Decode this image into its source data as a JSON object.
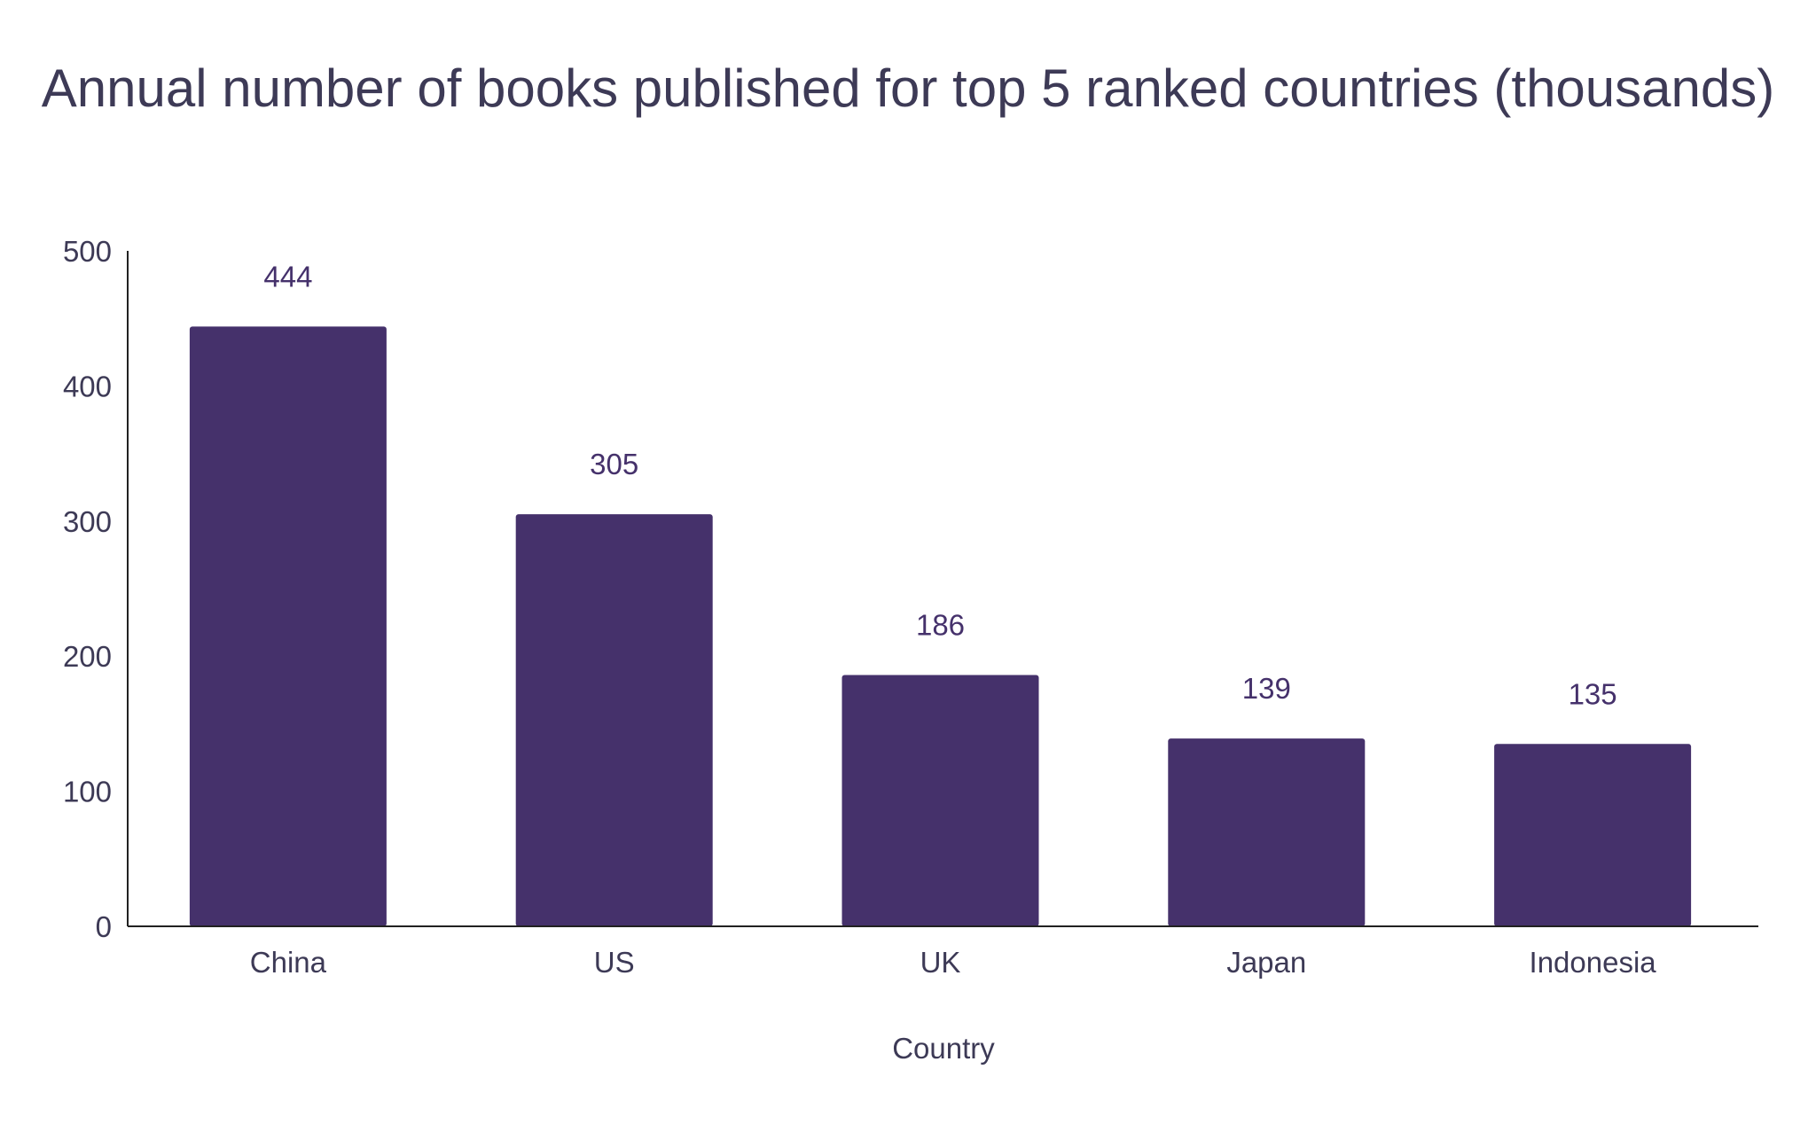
{
  "chart_data": {
    "type": "bar",
    "title": "Annual number of books published for top 5 ranked countries (thousands)",
    "xlabel": "Country",
    "ylabel": "",
    "categories": [
      "China",
      "US",
      "UK",
      "Japan",
      "Indonesia"
    ],
    "values": [
      444,
      305,
      186,
      139,
      135
    ],
    "data_labels": [
      "444",
      "305",
      "186",
      "139",
      "135"
    ],
    "ylim": [
      0,
      500
    ],
    "yticks": [
      0,
      100,
      200,
      300,
      400,
      500
    ],
    "grid": false,
    "legend": "none",
    "colors": {
      "bar": "#45316b",
      "text": "#3d3a56",
      "axis": "#222222"
    }
  }
}
